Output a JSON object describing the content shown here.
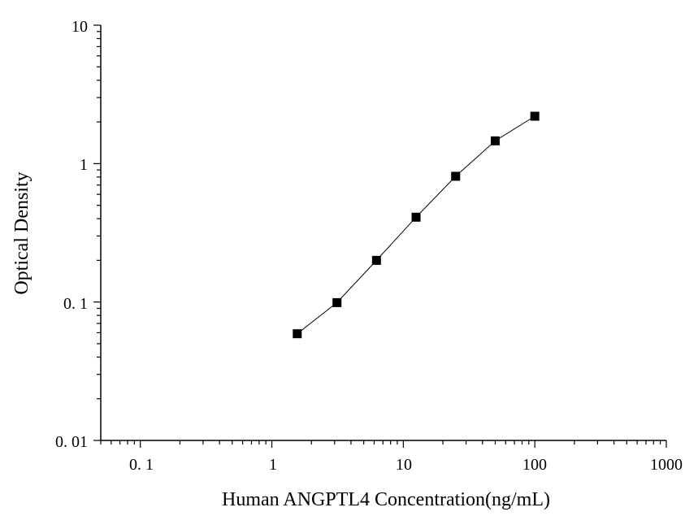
{
  "chart_data": {
    "type": "line",
    "x_scale": "log",
    "y_scale": "log",
    "xlabel": "Human ANGPTL4 Concentration(ng/mL)",
    "ylabel": "Optical Density",
    "xlim": [
      0.05,
      1000
    ],
    "ylim": [
      0.01,
      10
    ],
    "x_tick_labels": [
      "0. 1",
      "1",
      "10",
      "100",
      "1000"
    ],
    "y_tick_labels": [
      "0. 01",
      "0. 1",
      "1",
      "10"
    ],
    "grid": false,
    "series": [
      {
        "marker": "square",
        "color": "#000000",
        "x": [
          1.56,
          3.13,
          6.25,
          12.5,
          25,
          50,
          100
        ],
        "y": [
          0.059,
          0.099,
          0.2,
          0.41,
          0.81,
          1.46,
          2.2
        ]
      }
    ]
  }
}
